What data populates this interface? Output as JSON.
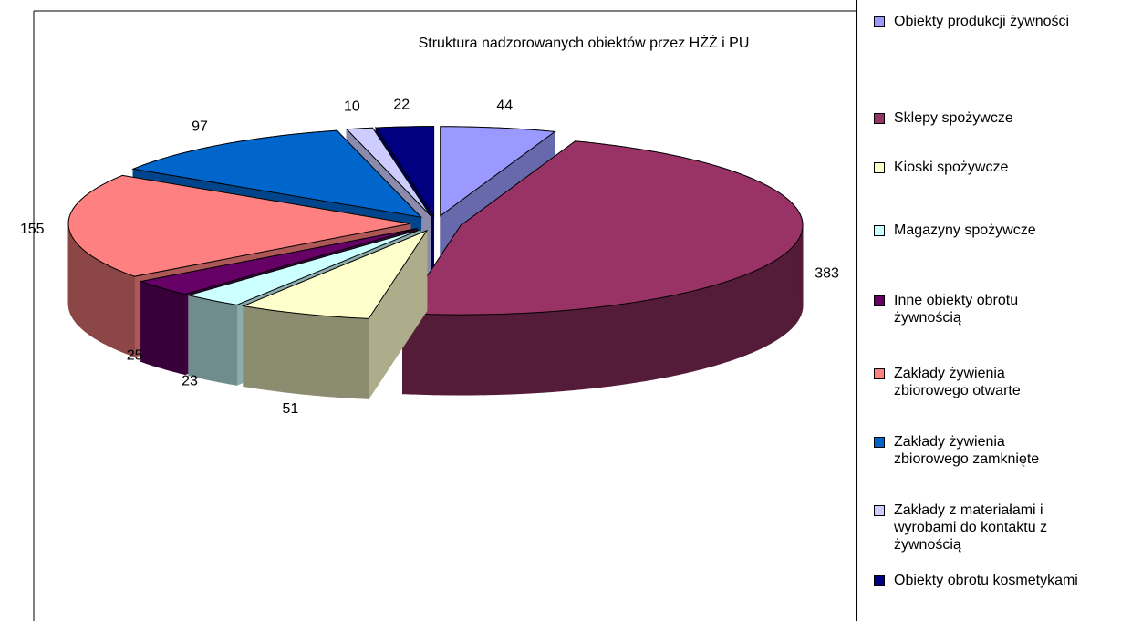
{
  "chart_data": {
    "type": "pie3d",
    "title": "Struktura nadzorowanych obiektów przez HŻŻ i PU",
    "categories": [
      "Obiekty produkcji żywności",
      "Sklepy spożywcze",
      "Kioski spożywcze",
      "Magazyny spożywcze",
      "Inne obiekty obrotu żywnością",
      "Zakłady żywienia zbiorowego otwarte",
      "Zakłady żywienia zbiorowego zamknięte",
      "Zakłady z materiałami i wyrobami do kontaktu z żywnością",
      "Obiekty obrotu kosmetykami"
    ],
    "values": [
      44,
      383,
      51,
      23,
      25,
      155,
      97,
      10,
      22
    ],
    "colors": [
      "#9999ff",
      "#993366",
      "#ffffcc",
      "#ccffff",
      "#660066",
      "#ff8080",
      "#0066cc",
      "#ccccff",
      "#000080"
    ],
    "legend": "right"
  }
}
